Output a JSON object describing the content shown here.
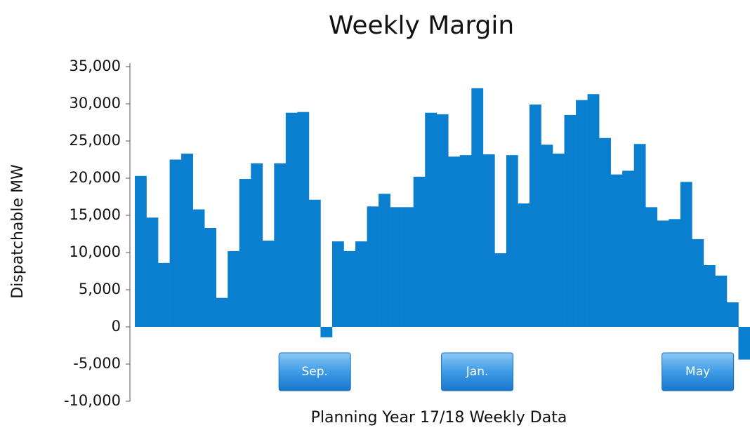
{
  "chart_data": {
    "type": "bar",
    "title": "Weekly Margin",
    "y_label": "Dispatchable MW",
    "x_label": "Planning Year 17/18 Weekly Data",
    "categories": [
      null,
      null,
      null,
      null,
      null,
      null,
      null,
      null,
      null,
      null,
      null,
      null,
      null,
      null,
      null,
      "Sep.",
      null,
      null,
      null,
      null,
      null,
      null,
      null,
      null,
      null,
      null,
      null,
      null,
      null,
      "Jan.",
      null,
      null,
      null,
      null,
      null,
      null,
      null,
      null,
      null,
      null,
      null,
      null,
      null,
      null,
      null,
      null,
      null,
      null,
      "May",
      null,
      null,
      null,
      null
    ],
    "values": [
      20300,
      14700,
      8600,
      22500,
      23300,
      15800,
      13300,
      3900,
      10200,
      19900,
      22000,
      11600,
      22000,
      28800,
      28900,
      17100,
      -1400,
      11500,
      10200,
      11500,
      16200,
      17900,
      16100,
      16100,
      20200,
      28800,
      28600,
      22900,
      23100,
      32100,
      23200,
      9900,
      23100,
      16600,
      29900,
      24500,
      23300,
      28500,
      30500,
      31300,
      25400,
      20500,
      21000,
      24600,
      16100,
      14300,
      14500,
      19500,
      11800,
      8300,
      6900,
      3300,
      -4400
    ],
    "color": "#0a7fd0",
    "ylim": [
      -10000,
      35000
    ],
    "yticks": [
      {
        "value": -10000,
        "label": "-10,000"
      },
      {
        "value": -5000,
        "label": "-5,000"
      },
      0,
      {
        "value": 5000,
        "label": "5,000"
      },
      {
        "value": 10000,
        "label": "10,000"
      },
      {
        "value": 15000,
        "label": "15,000"
      },
      {
        "value": 20000,
        "label": "20,000"
      },
      {
        "value": 25000,
        "label": "25,000"
      },
      {
        "value": 30000,
        "label": "30,000"
      },
      {
        "value": 35000,
        "label": "35,000"
      }
    ]
  }
}
